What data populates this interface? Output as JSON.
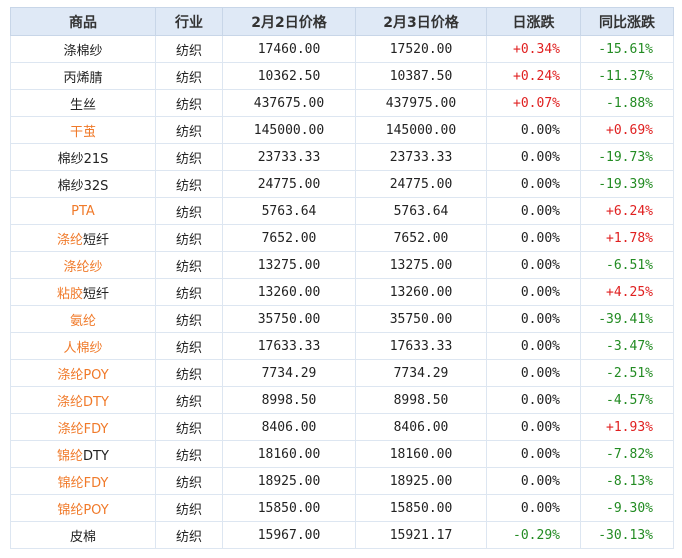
{
  "headers": {
    "product": "商品",
    "industry": "行业",
    "price_feb2": "2月2日价格",
    "price_feb3": "2月3日价格",
    "daily_change": "日涨跌",
    "yoy_change": "同比涨跌"
  },
  "colors": {
    "up": "#e02020",
    "down": "#228b22",
    "link": "#f07a2a",
    "header_bg": "#dfe9f6"
  },
  "rows": [
    {
      "link": "",
      "suffix": "涤棉纱",
      "industry": "纺织",
      "price_feb2": "17460.00",
      "price_feb3": "17520.00",
      "daily": "+0.34%",
      "daily_dir": "up",
      "yoy": "-15.61%",
      "yoy_dir": "down"
    },
    {
      "link": "",
      "suffix": "丙烯腈",
      "industry": "纺织",
      "price_feb2": "10362.50",
      "price_feb3": "10387.50",
      "daily": "+0.24%",
      "daily_dir": "up",
      "yoy": "-11.37%",
      "yoy_dir": "down"
    },
    {
      "link": "",
      "suffix": "生丝",
      "industry": "纺织",
      "price_feb2": "437675.00",
      "price_feb3": "437975.00",
      "daily": "+0.07%",
      "daily_dir": "up",
      "yoy": "-1.88%",
      "yoy_dir": "down"
    },
    {
      "link": "干茧",
      "suffix": "",
      "industry": "纺织",
      "price_feb2": "145000.00",
      "price_feb3": "145000.00",
      "daily": "0.00%",
      "daily_dir": "flat",
      "yoy": "+0.69%",
      "yoy_dir": "up"
    },
    {
      "link": "",
      "suffix": "棉纱21S",
      "industry": "纺织",
      "price_feb2": "23733.33",
      "price_feb3": "23733.33",
      "daily": "0.00%",
      "daily_dir": "flat",
      "yoy": "-19.73%",
      "yoy_dir": "down"
    },
    {
      "link": "",
      "suffix": "棉纱32S",
      "industry": "纺织",
      "price_feb2": "24775.00",
      "price_feb3": "24775.00",
      "daily": "0.00%",
      "daily_dir": "flat",
      "yoy": "-19.39%",
      "yoy_dir": "down"
    },
    {
      "link": "PTA",
      "suffix": "",
      "industry": "纺织",
      "price_feb2": "5763.64",
      "price_feb3": "5763.64",
      "daily": "0.00%",
      "daily_dir": "flat",
      "yoy": "+6.24%",
      "yoy_dir": "up"
    },
    {
      "link": "涤纶",
      "suffix": "短纤",
      "industry": "纺织",
      "price_feb2": "7652.00",
      "price_feb3": "7652.00",
      "daily": "0.00%",
      "daily_dir": "flat",
      "yoy": "+1.78%",
      "yoy_dir": "up"
    },
    {
      "link": "涤纶纱",
      "suffix": "",
      "industry": "纺织",
      "price_feb2": "13275.00",
      "price_feb3": "13275.00",
      "daily": "0.00%",
      "daily_dir": "flat",
      "yoy": "-6.51%",
      "yoy_dir": "down"
    },
    {
      "link": "粘胶",
      "suffix": "短纤",
      "industry": "纺织",
      "price_feb2": "13260.00",
      "price_feb3": "13260.00",
      "daily": "0.00%",
      "daily_dir": "flat",
      "yoy": "+4.25%",
      "yoy_dir": "up"
    },
    {
      "link": "氨纶",
      "suffix": "",
      "industry": "纺织",
      "price_feb2": "35750.00",
      "price_feb3": "35750.00",
      "daily": "0.00%",
      "daily_dir": "flat",
      "yoy": "-39.41%",
      "yoy_dir": "down"
    },
    {
      "link": "人棉纱",
      "suffix": "",
      "industry": "纺织",
      "price_feb2": "17633.33",
      "price_feb3": "17633.33",
      "daily": "0.00%",
      "daily_dir": "flat",
      "yoy": "-3.47%",
      "yoy_dir": "down"
    },
    {
      "link": "涤纶POY",
      "suffix": "",
      "industry": "纺织",
      "price_feb2": "7734.29",
      "price_feb3": "7734.29",
      "daily": "0.00%",
      "daily_dir": "flat",
      "yoy": "-2.51%",
      "yoy_dir": "down"
    },
    {
      "link": "涤纶DTY",
      "suffix": "",
      "industry": "纺织",
      "price_feb2": "8998.50",
      "price_feb3": "8998.50",
      "daily": "0.00%",
      "daily_dir": "flat",
      "yoy": "-4.57%",
      "yoy_dir": "down"
    },
    {
      "link": "涤纶FDY",
      "suffix": "",
      "industry": "纺织",
      "price_feb2": "8406.00",
      "price_feb3": "8406.00",
      "daily": "0.00%",
      "daily_dir": "flat",
      "yoy": "+1.93%",
      "yoy_dir": "up"
    },
    {
      "link": "锦纶",
      "suffix": "DTY",
      "industry": "纺织",
      "price_feb2": "18160.00",
      "price_feb3": "18160.00",
      "daily": "0.00%",
      "daily_dir": "flat",
      "yoy": "-7.82%",
      "yoy_dir": "down"
    },
    {
      "link": "锦纶FDY",
      "suffix": "",
      "industry": "纺织",
      "price_feb2": "18925.00",
      "price_feb3": "18925.00",
      "daily": "0.00%",
      "daily_dir": "flat",
      "yoy": "-8.13%",
      "yoy_dir": "down"
    },
    {
      "link": "锦纶POY",
      "suffix": "",
      "industry": "纺织",
      "price_feb2": "15850.00",
      "price_feb3": "15850.00",
      "daily": "0.00%",
      "daily_dir": "flat",
      "yoy": "-9.30%",
      "yoy_dir": "down"
    },
    {
      "link": "",
      "suffix": "皮棉",
      "industry": "纺织",
      "price_feb2": "15967.00",
      "price_feb3": "15921.17",
      "daily": "-0.29%",
      "daily_dir": "down",
      "yoy": "-30.13%",
      "yoy_dir": "down"
    }
  ]
}
